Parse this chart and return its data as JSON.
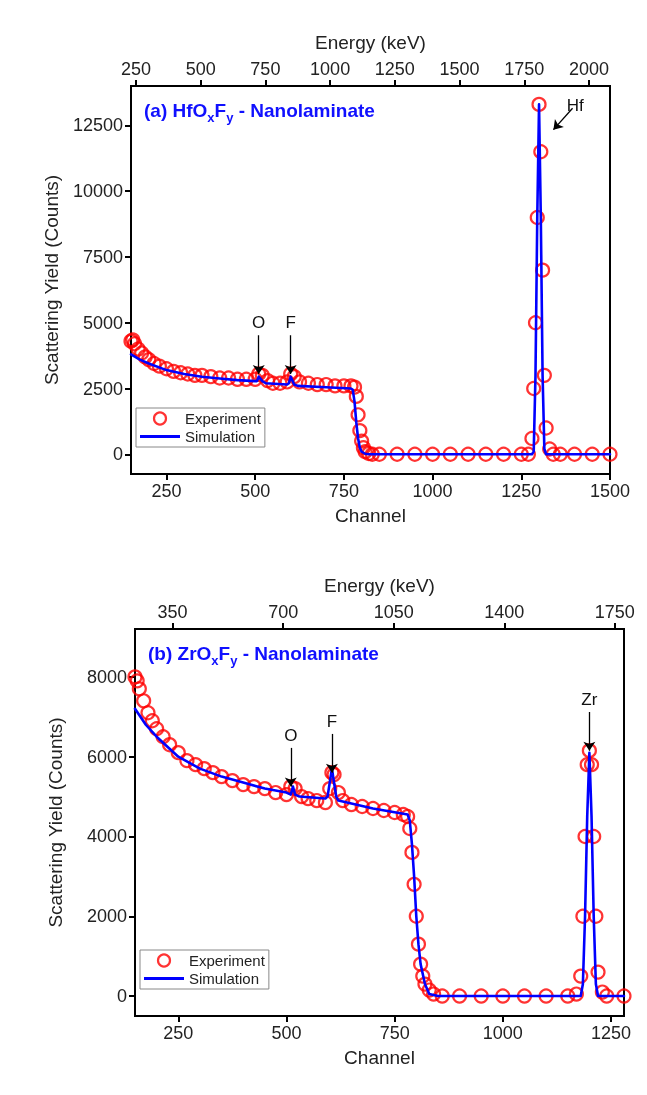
{
  "chart_data": [
    {
      "type": "scatter",
      "title": "(a) HfO$_{x}$F$_{y}$ - Nanolaminate",
      "xlabel": "Channel",
      "x2label": "Energy (keV)",
      "ylabel": "Scattering Yield (Counts)",
      "xlim": [
        150,
        1500
      ],
      "xticks": [
        250,
        500,
        750,
        1000,
        1250,
        1500
      ],
      "x2lim": [
        231,
        2081
      ],
      "x2ticks": [
        250,
        500,
        750,
        1000,
        1250,
        1500,
        1750,
        2000
      ],
      "ylim": [
        -750,
        14000
      ],
      "yticks": [
        0,
        2500,
        5000,
        7500,
        10000,
        12500
      ],
      "grid": false,
      "legend": "bottom left",
      "series": [
        {
          "name": "Experiment",
          "marker": "circle",
          "color": "#ff0000",
          "x": [
            150,
            155,
            160,
            170,
            180,
            190,
            200,
            215,
            230,
            250,
            270,
            290,
            310,
            330,
            350,
            375,
            400,
            425,
            450,
            475,
            500,
            510,
            520,
            535,
            550,
            570,
            590,
            600,
            610,
            625,
            650,
            675,
            700,
            725,
            750,
            770,
            780,
            785,
            790,
            795,
            800,
            805,
            810,
            820,
            830,
            850,
            900,
            950,
            1000,
            1050,
            1100,
            1150,
            1200,
            1250,
            1270,
            1280,
            1285,
            1290,
            1295,
            1300,
            1305,
            1310,
            1315,
            1320,
            1330,
            1340,
            1360,
            1400,
            1450,
            1500
          ],
          "values": [
            4300,
            4350,
            4200,
            4000,
            3850,
            3700,
            3600,
            3450,
            3350,
            3250,
            3150,
            3100,
            3050,
            3000,
            3000,
            2950,
            2900,
            2900,
            2850,
            2850,
            2850,
            3050,
            3000,
            2800,
            2700,
            2700,
            2750,
            3050,
            2950,
            2750,
            2700,
            2650,
            2650,
            2600,
            2600,
            2600,
            2550,
            2200,
            1500,
            900,
            500,
            250,
            100,
            30,
            0,
            0,
            0,
            0,
            0,
            0,
            0,
            0,
            0,
            0,
            0,
            600,
            2500,
            5000,
            9000,
            13300,
            11500,
            7000,
            3000,
            1000,
            200,
            0,
            0,
            0,
            0,
            0
          ]
        },
        {
          "name": "Simulation",
          "type": "line",
          "marker": "none",
          "color": "#0000ff",
          "x": [
            150,
            175,
            200,
            250,
            300,
            350,
            400,
            450,
            500,
            505,
            510,
            520,
            530,
            590,
            595,
            600,
            610,
            620,
            700,
            770,
            775,
            780,
            785,
            790,
            795,
            800,
            810,
            820,
            830,
            1280,
            1285,
            1290,
            1295,
            1300,
            1305,
            1310,
            1315,
            1320,
            1500
          ],
          "values": [
            3800,
            3600,
            3450,
            3200,
            3050,
            2950,
            2880,
            2820,
            2780,
            2780,
            2950,
            2780,
            2700,
            2650,
            2700,
            2950,
            2650,
            2600,
            2550,
            2500,
            2450,
            2000,
            1200,
            600,
            250,
            100,
            20,
            0,
            0,
            0,
            100,
            3000,
            9000,
            13300,
            9000,
            3000,
            200,
            0,
            0
          ]
        }
      ],
      "annotations": [
        {
          "text": "O",
          "x": 510,
          "y": 3050
        },
        {
          "text": "F",
          "x": 600,
          "y": 3050
        },
        {
          "text": "Hf",
          "x": 1300,
          "y": 13300
        }
      ]
    },
    {
      "type": "scatter",
      "title": "(b) ZrO$_{x}$F$_{y}$ - Nanolaminate",
      "xlabel": "Channel",
      "x2label": "Energy (keV)",
      "ylabel": "Scattering Yield (Counts)",
      "xlim": [
        150,
        1280
      ],
      "xticks": [
        250,
        500,
        750,
        1000,
        1250
      ],
      "x2lim": [
        231,
        1779
      ],
      "x2ticks": [
        350,
        700,
        1050,
        1400,
        1750
      ],
      "ylim": [
        -500,
        9200
      ],
      "yticks": [
        0,
        2000,
        4000,
        6000,
        8000
      ],
      "grid": false,
      "legend": "bottom left",
      "series": [
        {
          "name": "Experiment",
          "marker": "circle",
          "color": "#ff0000",
          "x": [
            150,
            155,
            160,
            170,
            180,
            190,
            200,
            215,
            230,
            250,
            270,
            290,
            310,
            330,
            350,
            375,
            400,
            425,
            450,
            475,
            500,
            510,
            520,
            535,
            550,
            570,
            590,
            600,
            605,
            610,
            620,
            630,
            650,
            675,
            700,
            725,
            750,
            770,
            780,
            785,
            790,
            795,
            800,
            805,
            810,
            815,
            820,
            830,
            840,
            860,
            900,
            950,
            1000,
            1050,
            1100,
            1150,
            1170,
            1180,
            1185,
            1190,
            1195,
            1200,
            1205,
            1210,
            1215,
            1220,
            1230,
            1240,
            1280
          ],
          "values": [
            8000,
            7900,
            7700,
            7400,
            7100,
            6900,
            6700,
            6500,
            6300,
            6100,
            5900,
            5800,
            5700,
            5600,
            5500,
            5400,
            5300,
            5250,
            5200,
            5100,
            5050,
            5250,
            5200,
            5000,
            4950,
            4900,
            4850,
            5200,
            5600,
            5550,
            5100,
            4900,
            4800,
            4750,
            4700,
            4650,
            4600,
            4550,
            4500,
            4200,
            3600,
            2800,
            2000,
            1300,
            800,
            500,
            300,
            150,
            50,
            0,
            0,
            0,
            0,
            0,
            0,
            0,
            50,
            500,
            2000,
            4000,
            5800,
            6150,
            5800,
            4000,
            2000,
            600,
            100,
            0,
            0
          ]
        },
        {
          "name": "Simulation",
          "type": "line",
          "marker": "none",
          "color": "#0000ff",
          "x": [
            150,
            175,
            200,
            250,
            300,
            350,
            400,
            450,
            500,
            510,
            515,
            520,
            530,
            590,
            595,
            605,
            615,
            620,
            700,
            780,
            785,
            790,
            795,
            800,
            805,
            810,
            820,
            830,
            850,
            1180,
            1185,
            1190,
            1195,
            1200,
            1205,
            1210,
            1215,
            1220,
            1280
          ],
          "values": [
            7200,
            6800,
            6500,
            6000,
            5700,
            5500,
            5350,
            5200,
            5100,
            5050,
            5250,
            5050,
            5000,
            4950,
            5000,
            5700,
            5000,
            4900,
            4700,
            4550,
            4400,
            3800,
            3000,
            2000,
            1300,
            800,
            300,
            50,
            0,
            0,
            300,
            2000,
            4500,
            6100,
            4500,
            2000,
            300,
            0,
            0
          ]
        }
      ],
      "annotations": [
        {
          "text": "O",
          "x": 510,
          "y": 5250
        },
        {
          "text": "F",
          "x": 605,
          "y": 5600
        },
        {
          "text": "Zr",
          "x": 1200,
          "y": 6150
        }
      ]
    }
  ]
}
